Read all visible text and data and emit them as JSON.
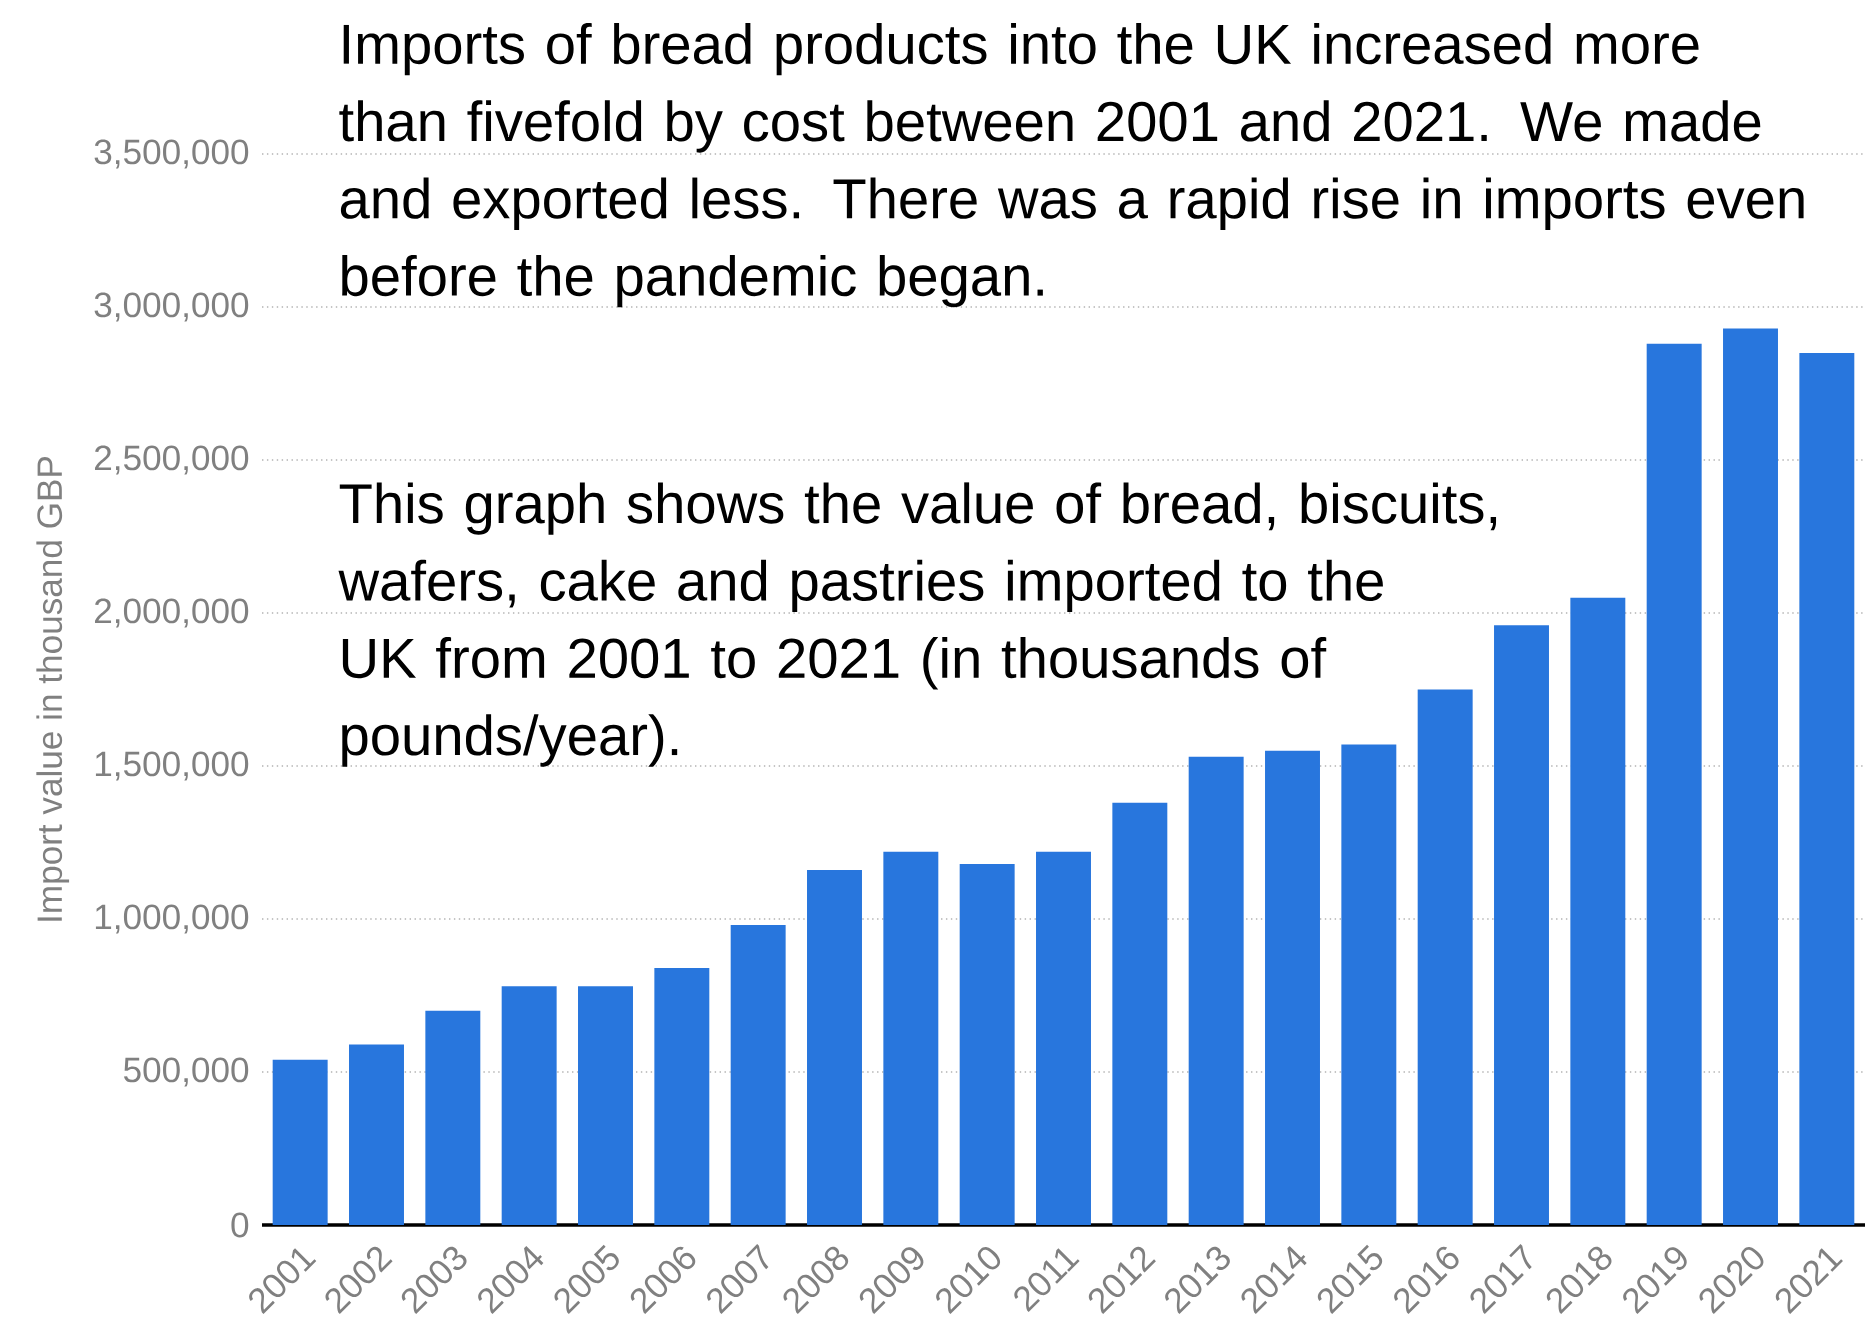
{
  "chart_data": {
    "type": "bar",
    "ylabel": "Import value in thousand GBP",
    "categories": [
      "2001",
      "2002",
      "2003",
      "2004",
      "2005",
      "2006",
      "2007",
      "2008",
      "2009",
      "2010",
      "2011",
      "2012",
      "2013",
      "2014",
      "2015",
      "2016",
      "2017",
      "2018",
      "2019",
      "2020",
      "2021"
    ],
    "values": [
      540000,
      590000,
      700000,
      780000,
      780000,
      840000,
      980000,
      1160000,
      1220000,
      1180000,
      1220000,
      1380000,
      1530000,
      1550000,
      1570000,
      1750000,
      1960000,
      2050000,
      2880000,
      2930000,
      2850000
    ],
    "color": "#2876dd",
    "ylim": [
      0,
      3500000
    ],
    "yticks": [
      {
        "value": 0,
        "label": "0"
      },
      {
        "value": 500000,
        "label": "500,000"
      },
      {
        "value": 1000000,
        "label": "1,000,000"
      },
      {
        "value": 1500000,
        "label": "1,500,000"
      },
      {
        "value": 2000000,
        "label": "2,000,000"
      },
      {
        "value": 2500000,
        "label": "2,500,000"
      },
      {
        "value": 3000000,
        "label": "3,000,000"
      },
      {
        "value": 3500000,
        "label": "3,500,000"
      }
    ],
    "grid": "y",
    "annotations": [
      "Imports of bread products into the UK increased more than fivefold by cost between 2001 and 2021. We made and exported less. There was a rapid rise in imports even before the pandemic began.",
      "This graph shows the value of bread, biscuits, wafers, cake and pastries imported to the UK from 2001 to 2021 (in thousands of pounds/year)."
    ]
  }
}
